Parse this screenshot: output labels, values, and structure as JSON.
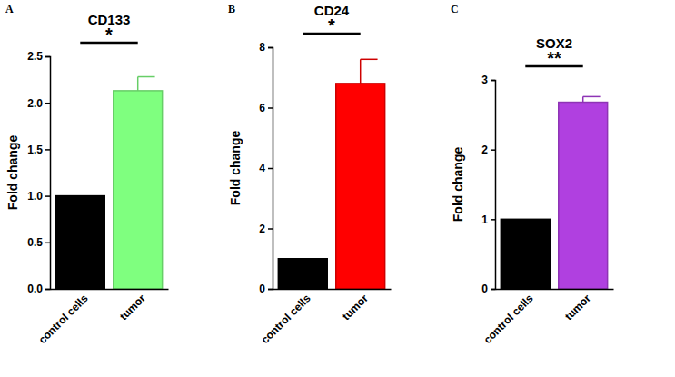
{
  "chart_data": [
    {
      "type": "bar",
      "label": "A",
      "title": "CD133",
      "ylabel": "Fold change",
      "categories": [
        "control cells",
        "tumor"
      ],
      "values": [
        1.0,
        2.13
      ],
      "errors": [
        null,
        0.15
      ],
      "colors": [
        "#000000",
        "#7fff7f"
      ],
      "significance": "*",
      "ylim": [
        0,
        2.5
      ],
      "yticks": [
        {
          "value": 0,
          "label": "0.0"
        },
        {
          "value": 0.5,
          "label": "0.5"
        },
        {
          "value": 1,
          "label": "1.0"
        },
        {
          "value": 1.5,
          "label": "1.5"
        },
        {
          "value": 2,
          "label": "2.0"
        },
        {
          "value": 2.5,
          "label": "2.5"
        }
      ]
    },
    {
      "type": "bar",
      "label": "B",
      "title": "CD24",
      "ylabel": "Fold change",
      "categories": [
        "control cells",
        "tumor"
      ],
      "values": [
        1.0,
        6.8
      ],
      "errors": [
        null,
        0.8
      ],
      "colors": [
        "#000000",
        "#ff0000"
      ],
      "significance": "*",
      "ylim": [
        0,
        8
      ],
      "yticks": [
        0,
        2,
        4,
        6,
        8
      ]
    },
    {
      "type": "bar",
      "label": "C",
      "title": "SOX2",
      "ylabel": "Fold change",
      "categories": [
        "control cells",
        "tumor"
      ],
      "values": [
        1.0,
        2.68
      ],
      "errors": [
        null,
        0.08
      ],
      "colors": [
        "#000000",
        "#b040e0"
      ],
      "significance": "**",
      "ylim": [
        0,
        3
      ],
      "yticks": [
        0,
        1,
        2,
        3
      ]
    }
  ]
}
